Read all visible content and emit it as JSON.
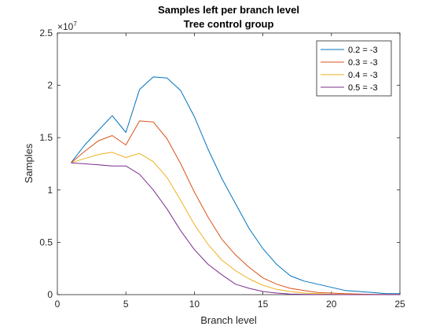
{
  "chart_data": {
    "type": "line",
    "title_lines": [
      "Samples left per branch level",
      "Tree control group"
    ],
    "xlabel": "Branch level",
    "ylabel": "Samples",
    "xlim": [
      0,
      25
    ],
    "ylim": [
      0,
      25000000
    ],
    "y_exponent_base": "×10",
    "y_exponent": "7",
    "xticks": [
      0,
      5,
      10,
      15,
      20,
      25
    ],
    "xtick_labels": [
      "0",
      "5",
      "10",
      "15",
      "20",
      "25"
    ],
    "yticks": [
      0,
      5000000,
      10000000,
      15000000,
      20000000,
      25000000
    ],
    "ytick_labels": [
      "0",
      "0.5",
      "1",
      "1.5",
      "2",
      "2.5"
    ],
    "grid": false,
    "legend_position": "top-right",
    "x": [
      1,
      2,
      3,
      4,
      5,
      6,
      7,
      8,
      9,
      10,
      11,
      12,
      13,
      14,
      15,
      16,
      17,
      18,
      19,
      20,
      21,
      22,
      23,
      24,
      25
    ],
    "series": [
      {
        "name": "0.2 = -3",
        "color": "#0072BD",
        "values": [
          12600000,
          14300000,
          15700000,
          17100000,
          15500000,
          19600000,
          20800000,
          20700000,
          19500000,
          17000000,
          13900000,
          11100000,
          8700000,
          6300000,
          4400000,
          2900000,
          1800000,
          1300000,
          1000000,
          700000,
          400000,
          300000,
          200000,
          100000,
          100000
        ]
      },
      {
        "name": "0.3 = -3",
        "color": "#D95319",
        "values": [
          12600000,
          13700000,
          14700000,
          15200000,
          14300000,
          16600000,
          16500000,
          14900000,
          12500000,
          9800000,
          7400000,
          5300000,
          3800000,
          2600000,
          1600000,
          1000000,
          600000,
          400000,
          200000,
          150000,
          100000,
          50000,
          30000,
          20000,
          10000
        ]
      },
      {
        "name": "0.4 = -3",
        "color": "#EDB120",
        "values": [
          12600000,
          13000000,
          13400000,
          13600000,
          13100000,
          13500000,
          12700000,
          11200000,
          9000000,
          6700000,
          4800000,
          3300000,
          2300000,
          1500000,
          900000,
          500000,
          300000,
          150000,
          80000,
          40000,
          20000,
          10000,
          5000,
          2000,
          1000
        ]
      },
      {
        "name": "0.5 = -3",
        "color": "#7E2F8E",
        "values": [
          12600000,
          12500000,
          12400000,
          12300000,
          12300000,
          11500000,
          10000000,
          8200000,
          6100000,
          4300000,
          2900000,
          1900000,
          1000000,
          600000,
          300000,
          150000,
          60000,
          30000,
          10000,
          5000,
          2000,
          1000,
          500,
          200,
          100
        ]
      }
    ]
  }
}
